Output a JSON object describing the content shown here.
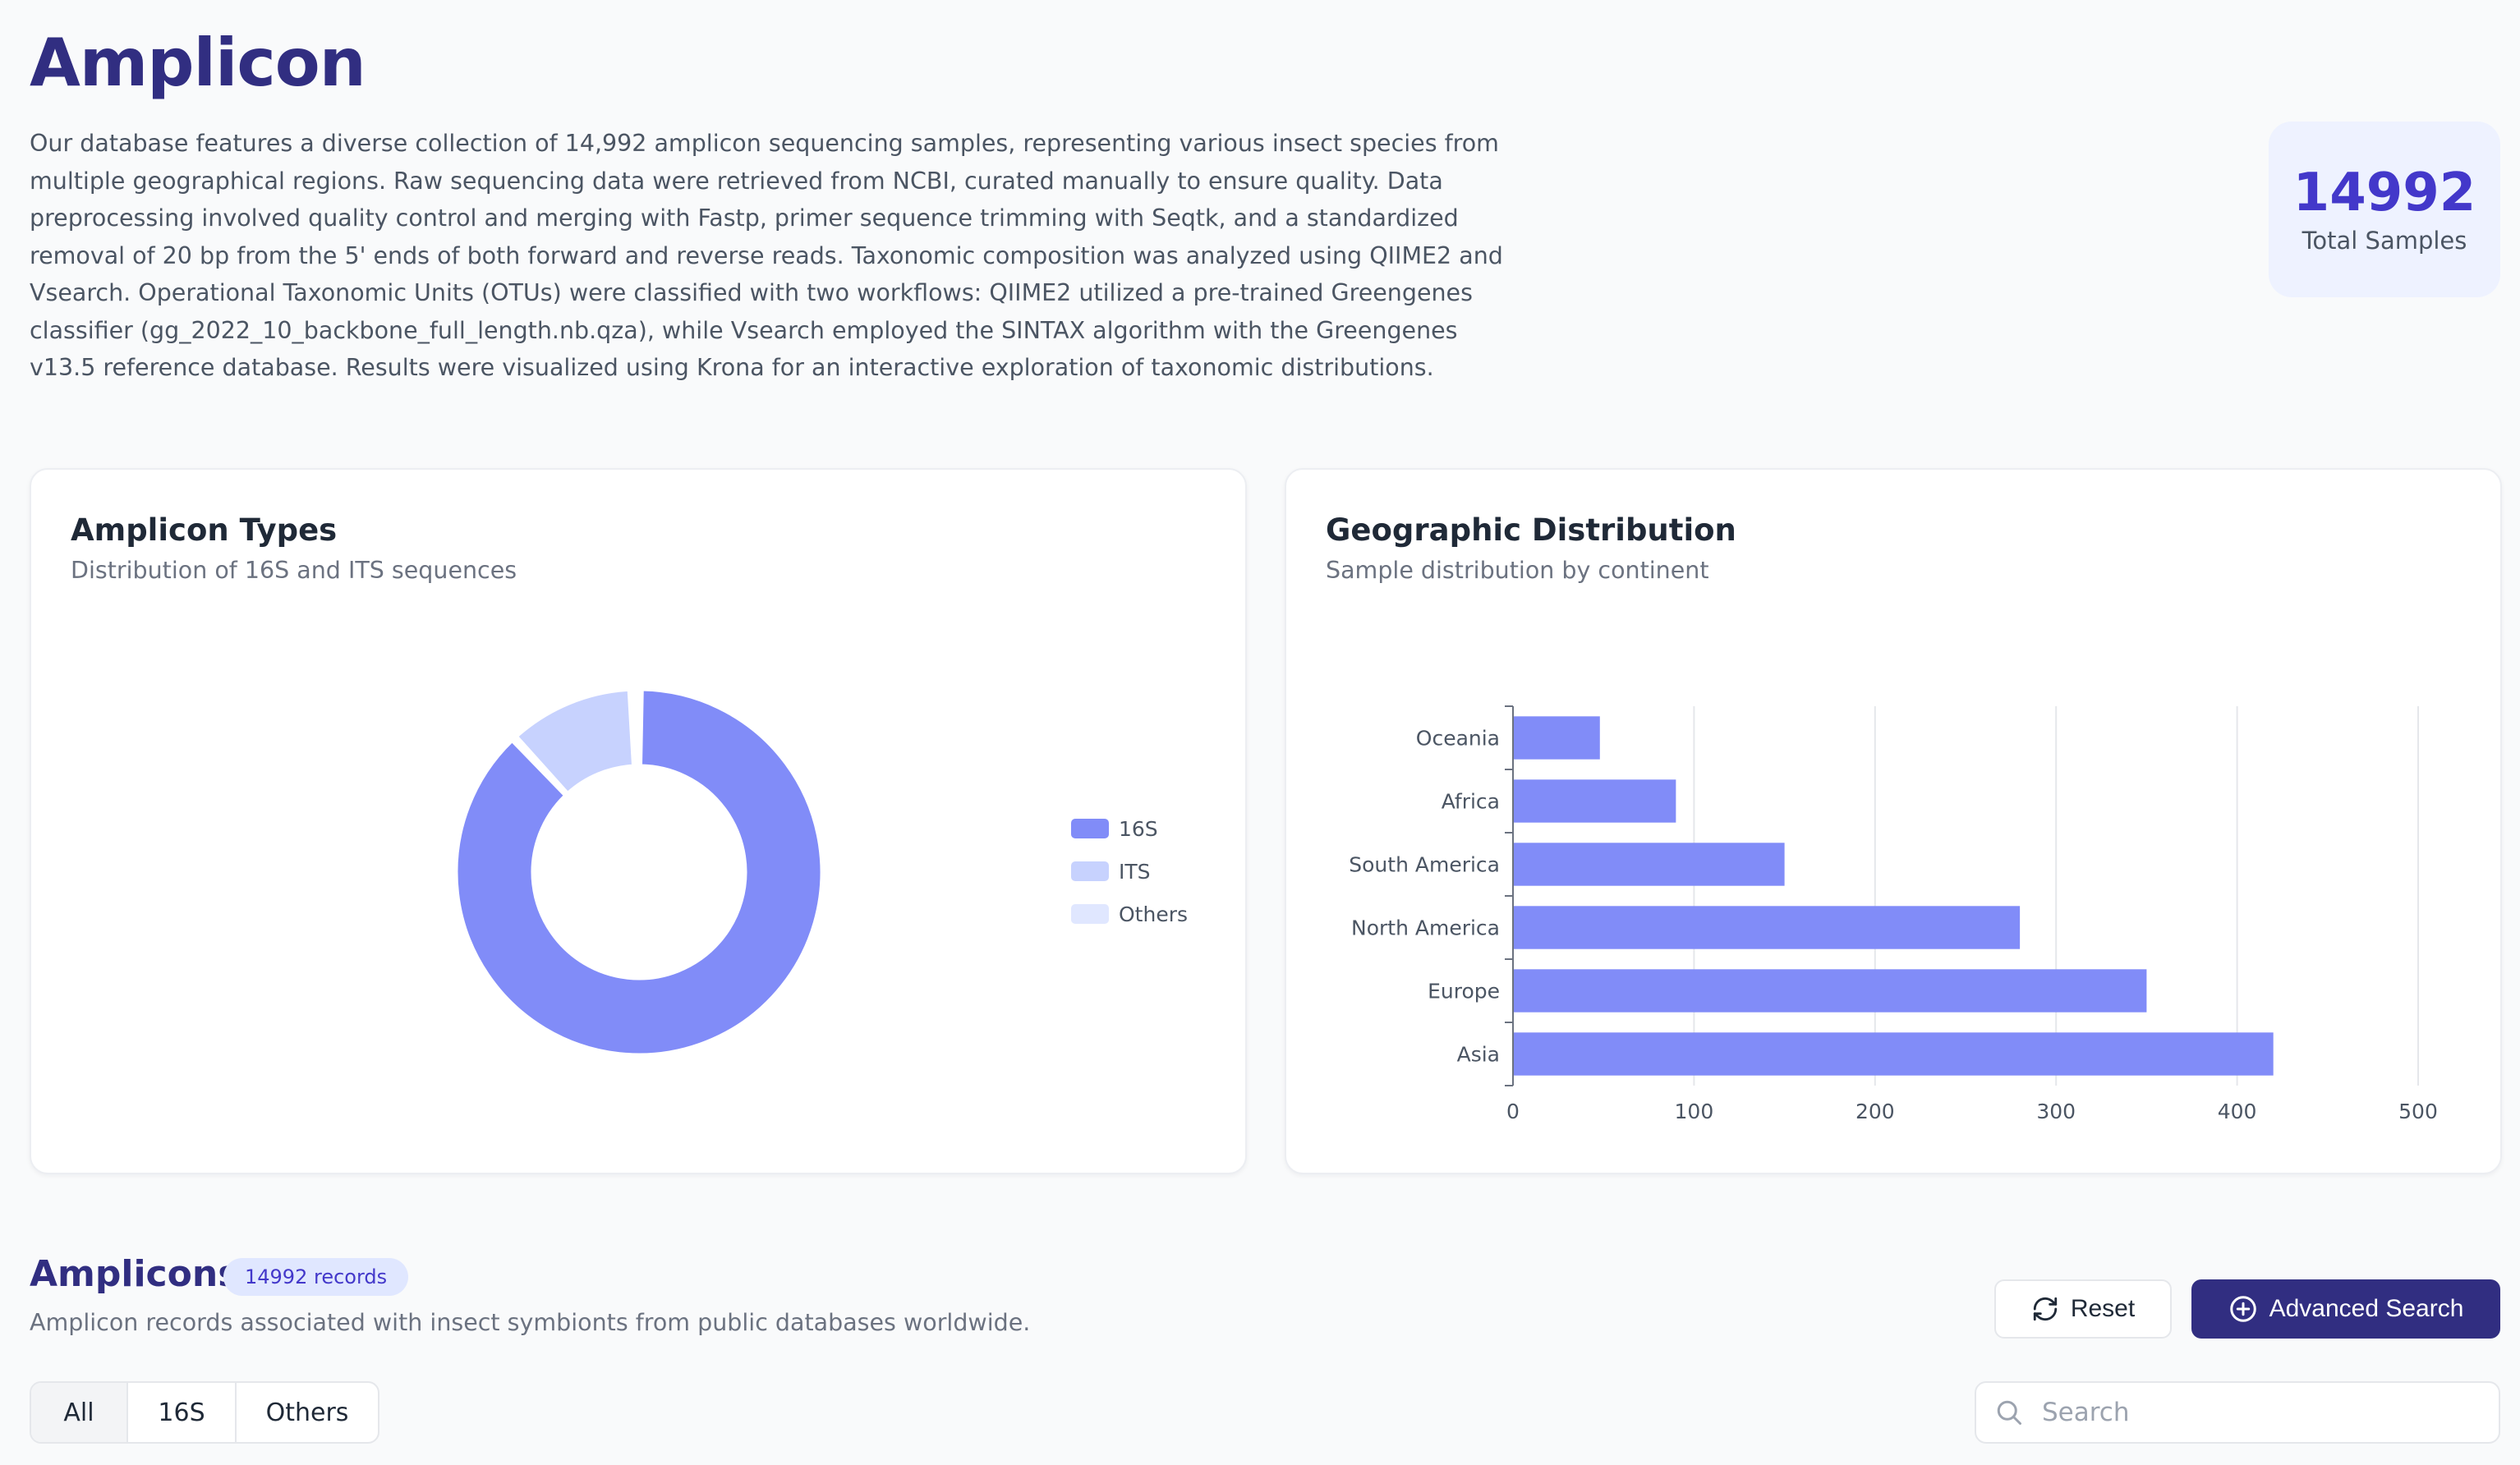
{
  "page": {
    "title": "Amplicon",
    "description": "Our database features a diverse collection of 14,992 amplicon sequencing samples, representing various insect species from multiple geographical regions. Raw sequencing data were retrieved from NCBI, curated manually to ensure quality. Data preprocessing involved quality control and merging with Fastp, primer sequence trimming with Seqtk, and a standardized removal of 20 bp from the 5' ends of both forward and reverse reads. Taxonomic composition was analyzed using QIIME2 and Vsearch. Operational Taxonomic Units (OTUs) were classified with two workflows: QIIME2 utilized a pre-trained Greengenes classifier (gg_2022_10_backbone_full_length.nb.qza), while Vsearch employed the SINTAX algorithm with the Greengenes v13.5 reference database. Results were visualized using Krona for an interactive exploration of taxonomic distributions."
  },
  "stat": {
    "value": "14992",
    "label": "Total Samples"
  },
  "amplicon_card": {
    "title": "Amplicon Types",
    "subtitle": "Distribution of 16S and ITS sequences"
  },
  "geo_card": {
    "title": "Geographic Distribution",
    "subtitle": "Sample distribution by continent"
  },
  "chart_data": [
    {
      "type": "pie",
      "variant": "donut",
      "title": "Amplicon Types",
      "categories": [
        "16S",
        "ITS",
        "Others"
      ],
      "values": [
        13200,
        1700,
        92
      ],
      "colors": [
        "#818cf8",
        "#c7d2fe",
        "#e0e7ff"
      ],
      "legend": "right"
    },
    {
      "type": "bar",
      "orientation": "horizontal",
      "title": "Geographic Distribution",
      "categories": [
        "Oceania",
        "Africa",
        "South America",
        "North America",
        "Europe",
        "Asia"
      ],
      "values": [
        48,
        90,
        150,
        280,
        350,
        420
      ],
      "xlim": [
        0,
        500
      ],
      "xticks": [
        0,
        100,
        200,
        300,
        400,
        500
      ],
      "grid": "vertical",
      "color": "#818cf8"
    }
  ],
  "records": {
    "title": "Amplicons",
    "badge": "14992 records",
    "subtitle": "Amplicon records associated with insect symbionts from public databases worldwide."
  },
  "buttons": {
    "reset": "Reset",
    "advanced_search": "Advanced Search"
  },
  "tabs": [
    {
      "label": "All",
      "active": true
    },
    {
      "label": "16S",
      "active": false
    },
    {
      "label": "Others",
      "active": false
    }
  ],
  "search": {
    "placeholder": "Search",
    "value": ""
  },
  "icons": {
    "reset": "refresh-icon",
    "advanced_search": "plus-circle-icon",
    "search": "search-icon"
  }
}
